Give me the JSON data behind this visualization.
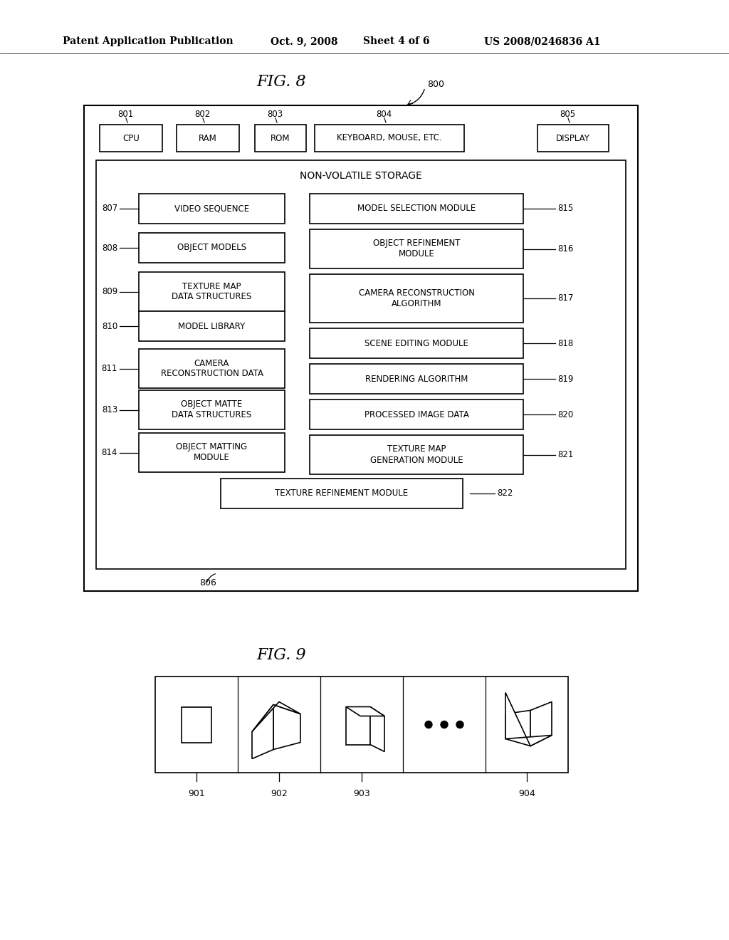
{
  "background_color": "#ffffff",
  "fig_width": 10.24,
  "fig_height": 13.2,
  "header_text": "Patent Application Publication",
  "header_date": "Oct. 9, 2008",
  "header_sheet": "Sheet 4 of 6",
  "header_patent": "US 2008/0246836 A1",
  "fig8_title": "FIG. 8",
  "fig9_title": "FIG. 9",
  "fig8_label": "800",
  "nvs_title": "NON-VOLATILE STORAGE",
  "nvs_label": "806",
  "bottom_box_text": "TEXTURE REFINEMENT MODULE",
  "bottom_box_label": "822",
  "top_boxes": [
    {
      "label": "801",
      "text": "CPU"
    },
    {
      "label": "802",
      "text": "RAM"
    },
    {
      "label": "803",
      "text": "ROM"
    },
    {
      "label": "804",
      "text": "KEYBOARD, MOUSE, ETC."
    },
    {
      "label": "805",
      "text": "DISPLAY"
    }
  ],
  "left_boxes": [
    {
      "label": "807",
      "text": "VIDEO SEQUENCE"
    },
    {
      "label": "808",
      "text": "OBJECT MODELS"
    },
    {
      "label": "809",
      "text": "TEXTURE MAP\nDATA STRUCTURES"
    },
    {
      "label": "810",
      "text": "MODEL LIBRARY"
    },
    {
      "label": "811",
      "text": "CAMERA\nRECONSTRUCTION DATA"
    },
    {
      "label": "813",
      "text": "OBJECT MATTE\nDATA STRUCTURES"
    },
    {
      "label": "814",
      "text": "OBJECT MATTING\nMODULE"
    }
  ],
  "right_boxes": [
    {
      "label": "815",
      "text": "MODEL SELECTION MODULE"
    },
    {
      "label": "816",
      "text": "OBJECT REFINEMENT\nMODULE"
    },
    {
      "label": "817",
      "text": "CAMERA RECONSTRUCTION\nALGORITHM"
    },
    {
      "label": "818",
      "text": "SCENE EDITING MODULE"
    },
    {
      "label": "819",
      "text": "RENDERING ALGORITHM"
    },
    {
      "label": "820",
      "text": "PROCESSED IMAGE DATA"
    },
    {
      "label": "821",
      "text": "TEXTURE MAP\nGENERATION MODULE"
    }
  ],
  "fig9_cell_labels": [
    "901",
    "902",
    "903",
    "904"
  ]
}
